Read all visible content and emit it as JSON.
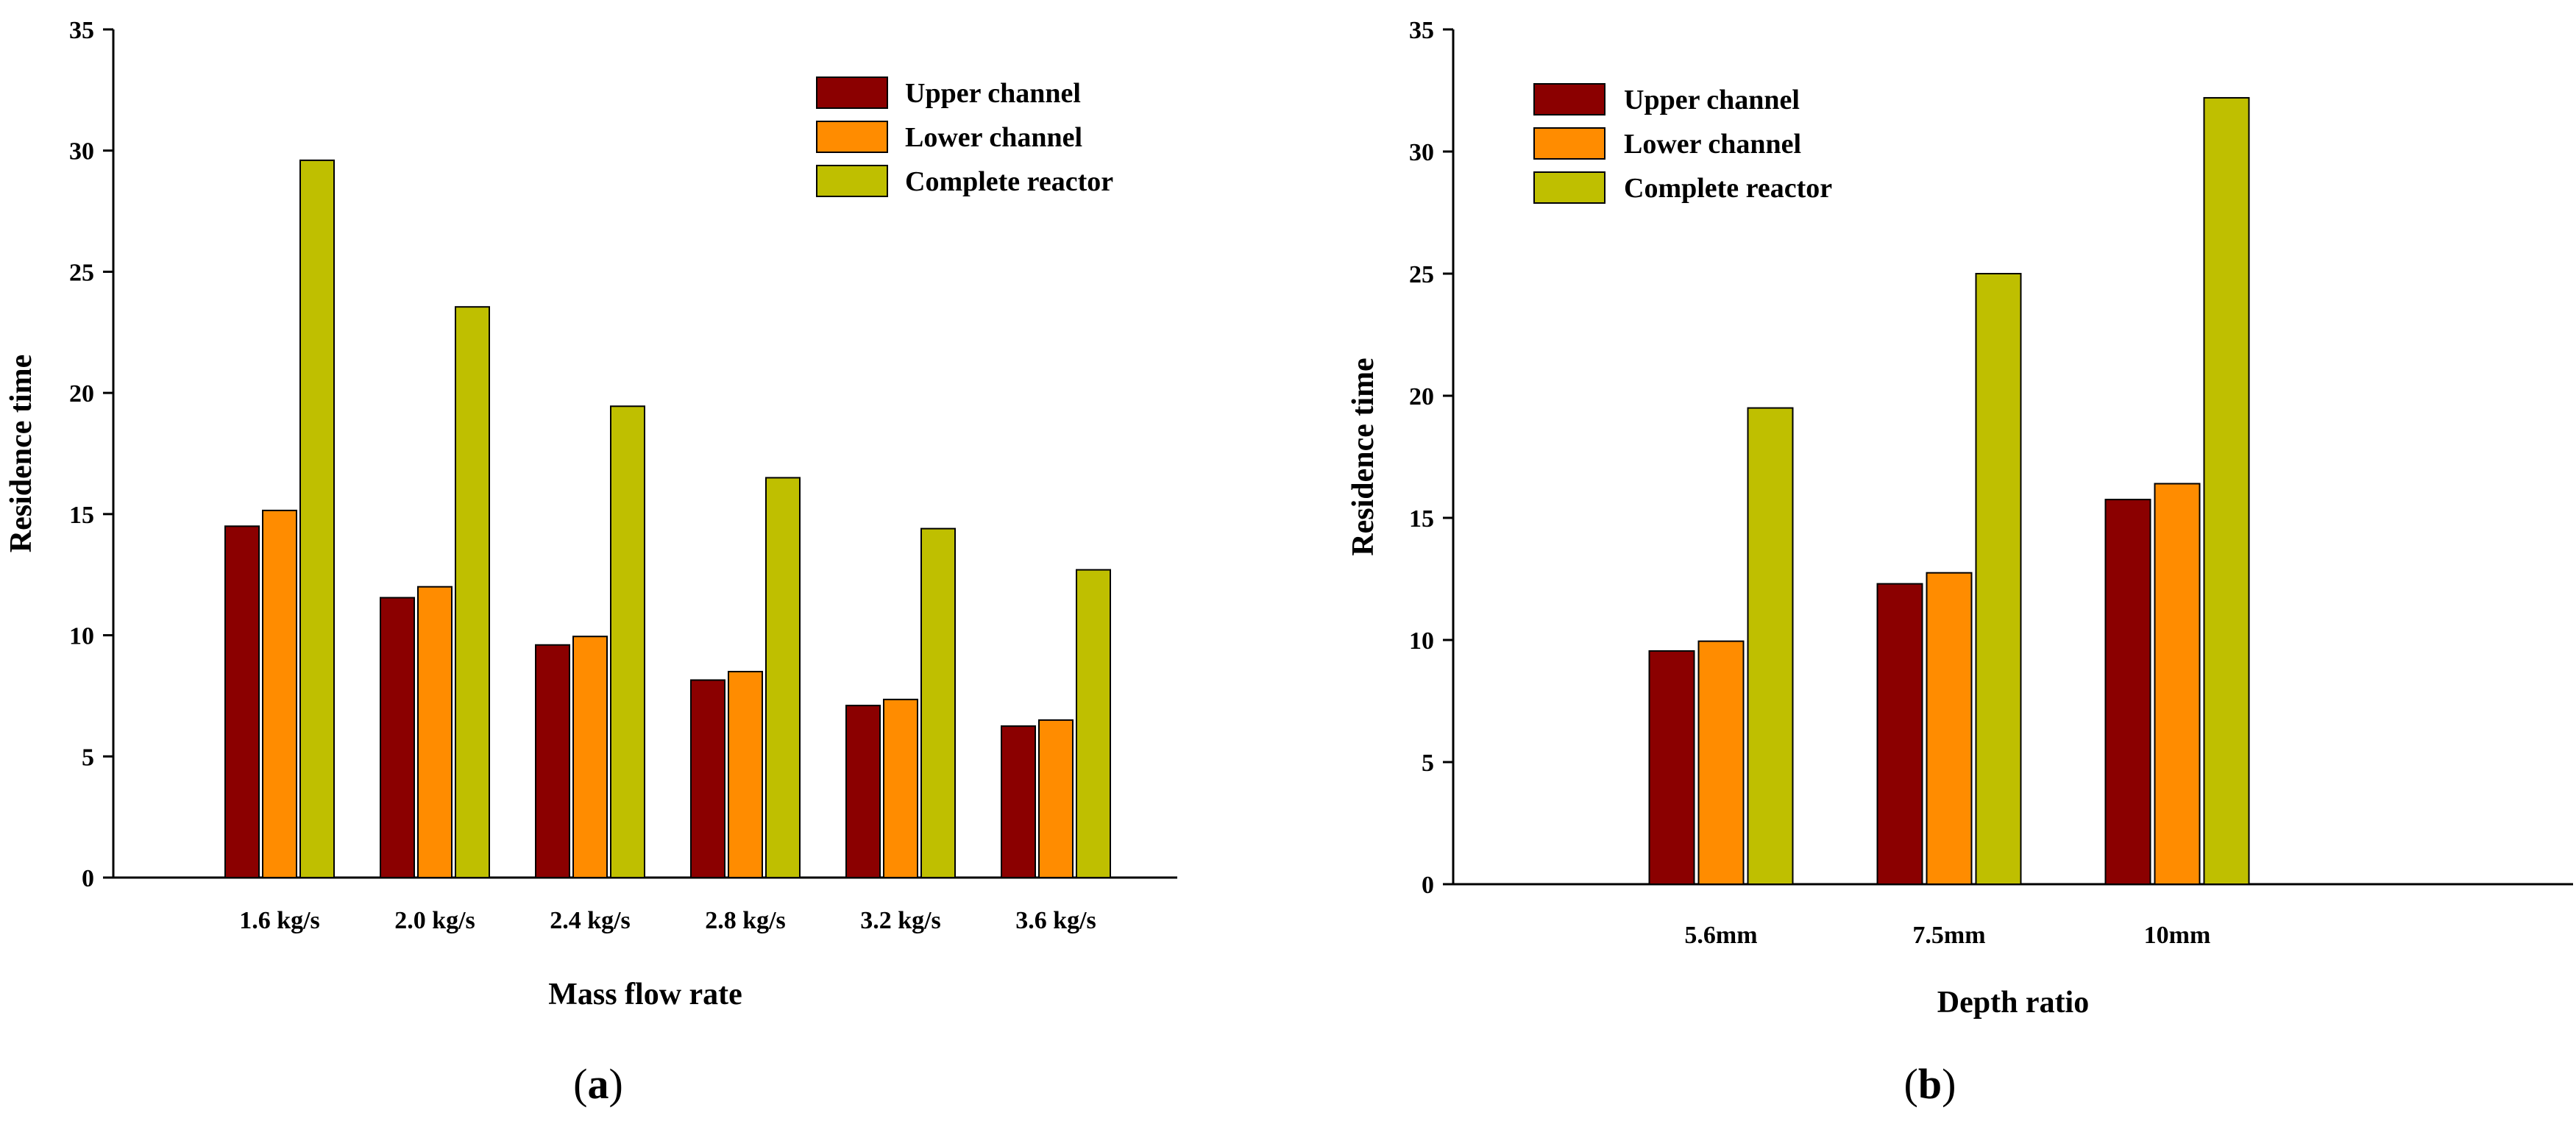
{
  "colors": {
    "upper": "#8B0000",
    "lower": "#FF8C00",
    "complete": "#BFBF00",
    "axis": "#000000"
  },
  "panels": [
    {
      "open": "(",
      "letter": "a",
      "close": ")"
    },
    {
      "open": "(",
      "letter": "b",
      "close": ")"
    }
  ],
  "chart_data": [
    {
      "type": "bar",
      "title": "",
      "xlabel": "Mass flow rate",
      "ylabel": "Residence time",
      "ylim": [
        0,
        35
      ],
      "yticks": [
        "0",
        "5",
        "10",
        "15",
        "20",
        "25",
        "30",
        "35"
      ],
      "categories": [
        "1.6 kg/s",
        "2.0 kg/s",
        "2.4 kg/s",
        "2.8 kg/s",
        "3.2 kg/s",
        "3.6 kg/s"
      ],
      "legend_position": "top-right",
      "series": [
        {
          "name": "Upper channel",
          "color_key": "upper",
          "values": [
            14.5,
            11.55,
            9.6,
            8.15,
            7.1,
            6.25
          ]
        },
        {
          "name": "Lower channel",
          "color_key": "lower",
          "values": [
            15.15,
            12.0,
            9.95,
            8.5,
            7.35,
            6.5
          ]
        },
        {
          "name": "Complete reactor",
          "color_key": "complete",
          "values": [
            29.6,
            23.55,
            19.45,
            16.5,
            14.4,
            12.7
          ]
        }
      ]
    },
    {
      "type": "bar",
      "title": "",
      "xlabel": "Depth ratio",
      "ylabel": "Residence time",
      "ylim": [
        0,
        35
      ],
      "yticks": [
        "0",
        "5",
        "10",
        "15",
        "20",
        "25",
        "30",
        "35"
      ],
      "categories": [
        "5.6mm",
        "7.5mm",
        "10mm"
      ],
      "legend_position": "top-left",
      "series": [
        {
          "name": "Upper channel",
          "color_key": "upper",
          "values": [
            9.55,
            12.3,
            15.75
          ]
        },
        {
          "name": "Lower channel",
          "color_key": "lower",
          "values": [
            9.95,
            12.75,
            16.4
          ]
        },
        {
          "name": "Complete reactor",
          "color_key": "complete",
          "values": [
            19.5,
            25.0,
            32.2
          ]
        }
      ]
    }
  ]
}
